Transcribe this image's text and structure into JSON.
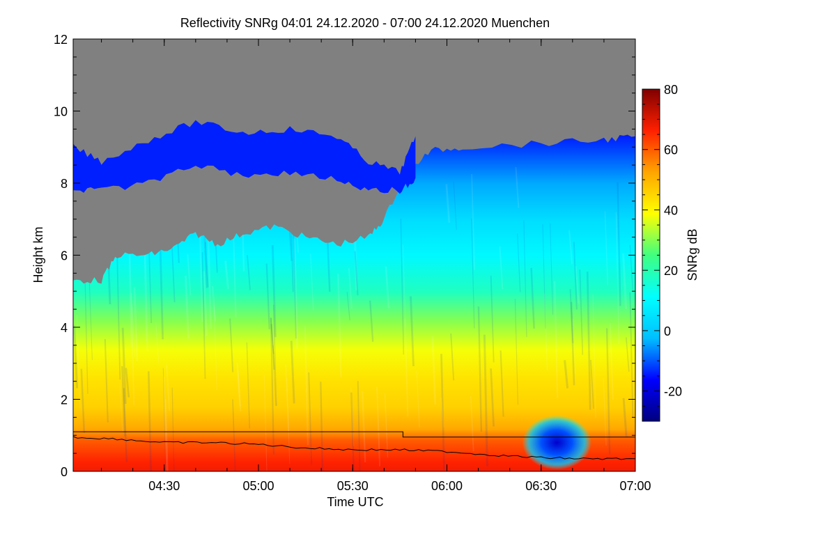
{
  "chart_data": {
    "type": "heatmap",
    "title": "Reflectivity SNRg   04:01 24.12.2020 - 07:00 24.12.2020 Muenchen",
    "xlabel": "Time UTC",
    "ylabel": "Height km",
    "colorbar_label": "SNRg dB",
    "xlim": [
      "04:01",
      "07:00"
    ],
    "ylim": [
      0,
      12
    ],
    "x_ticks": [
      "04:30",
      "05:00",
      "05:30",
      "06:00",
      "06:30",
      "07:00"
    ],
    "y_ticks": [
      "0",
      "2",
      "4",
      "6",
      "8",
      "10",
      "12"
    ],
    "colorbar_range": [
      -30,
      80
    ],
    "colorbar_ticks": [
      "-20",
      "0",
      "20",
      "40",
      "60",
      "80"
    ],
    "no_signal_color": "#808080",
    "colormap": [
      "#00007f",
      "#0000ff",
      "#00bfff",
      "#00ffff",
      "#40ff80",
      "#ffff00",
      "#ffa500",
      "#ff2000",
      "#7f0000"
    ],
    "cloud_top_km": [
      [
        "04:01",
        5.3
      ],
      [
        "04:10",
        5.3
      ],
      [
        "04:15",
        6.0
      ],
      [
        "04:25",
        6.0
      ],
      [
        "04:33",
        6.2
      ],
      [
        "04:40",
        6.6
      ],
      [
        "04:47",
        6.3
      ],
      [
        "04:55",
        6.6
      ],
      [
        "05:05",
        6.8
      ],
      [
        "05:15",
        6.5
      ],
      [
        "05:25",
        6.3
      ],
      [
        "05:35",
        6.5
      ],
      [
        "05:40",
        7.0
      ],
      [
        "05:47",
        8.3
      ],
      [
        "05:55",
        8.9
      ],
      [
        "06:05",
        9.0
      ],
      [
        "06:30",
        9.1
      ],
      [
        "06:50",
        9.2
      ],
      [
        "07:00",
        9.3
      ]
    ],
    "cloud_top_high_km": [
      [
        "04:01",
        9.0
      ],
      [
        "04:10",
        8.6
      ],
      [
        "04:25",
        9.2
      ],
      [
        "04:40",
        9.7
      ],
      [
        "04:55",
        9.4
      ],
      [
        "05:10",
        9.5
      ],
      [
        "05:25",
        9.3
      ],
      [
        "05:35",
        8.6
      ],
      [
        "05:45",
        8.3
      ],
      [
        "05:50",
        9.3
      ]
    ],
    "upper_line_km": [
      [
        "04:01",
        1.1
      ],
      [
        "05:46",
        1.1
      ],
      [
        "05:46",
        0.95
      ],
      [
        "07:00",
        0.95
      ]
    ],
    "lower_line_km": [
      [
        "04:01",
        0.95
      ],
      [
        "04:15",
        0.9
      ],
      [
        "04:30",
        0.8
      ],
      [
        "04:45",
        0.8
      ],
      [
        "05:00",
        0.75
      ],
      [
        "05:15",
        0.65
      ],
      [
        "05:30",
        0.6
      ],
      [
        "05:45",
        0.6
      ],
      [
        "06:00",
        0.55
      ],
      [
        "06:15",
        0.45
      ],
      [
        "06:30",
        0.38
      ],
      [
        "06:45",
        0.35
      ],
      [
        "07:00",
        0.35
      ]
    ],
    "low_reflectivity_feature": {
      "time_range": [
        "06:28",
        "06:42"
      ],
      "height_range_km": [
        0.2,
        1.4
      ],
      "snr_db": -15
    }
  }
}
